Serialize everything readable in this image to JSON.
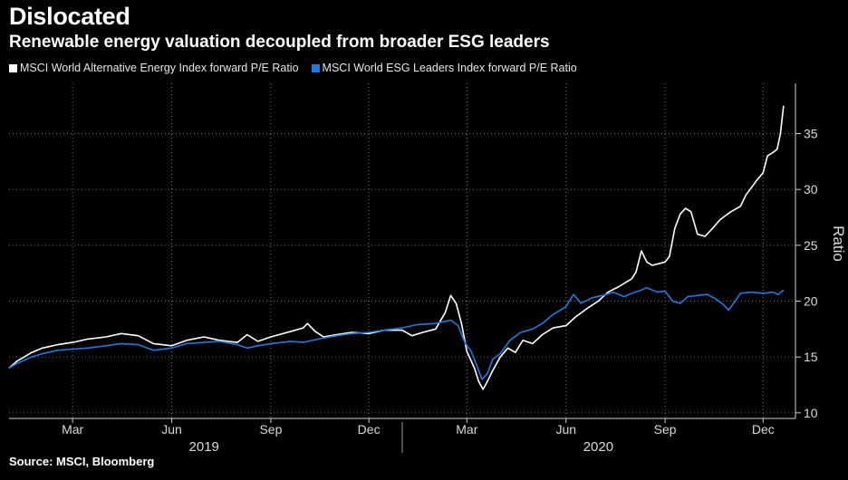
{
  "header": {
    "title": "Dislocated",
    "subtitle": "Renewable energy valuation decoupled from broader ESG leaders"
  },
  "footer": {
    "source": "Source: MSCI, Bloomberg"
  },
  "colors": {
    "background": "#000000",
    "series_white": "#ffffff",
    "series_blue": "#1f7ae0",
    "grid": "#7a7a7a"
  },
  "chart_data": {
    "type": "line",
    "title": "Dislocated",
    "subtitle": "Renewable energy valuation decoupled from broader ESG leaders",
    "ylabel": "Ratio",
    "xlabel": "",
    "x_domain": [
      "2019-01-01",
      "2020-12-31"
    ],
    "ylim": [
      9.5,
      39.5
    ],
    "yticks": [
      10,
      15,
      20,
      25,
      30,
      35
    ],
    "y_axis_side": "right",
    "grid": "dotted",
    "legend_position": "top-left",
    "x_month_ticks": [
      {
        "label": "Mar",
        "date": "2019-03-01"
      },
      {
        "label": "Jun",
        "date": "2019-06-01"
      },
      {
        "label": "Sep",
        "date": "2019-09-01"
      },
      {
        "label": "Dec",
        "date": "2019-12-01"
      },
      {
        "label": "Mar",
        "date": "2020-03-01"
      },
      {
        "label": "Jun",
        "date": "2020-06-01"
      },
      {
        "label": "Sep",
        "date": "2020-09-01"
      },
      {
        "label": "Dec",
        "date": "2020-12-01"
      }
    ],
    "x_year_labels": [
      {
        "label": "2019",
        "date": "2019-07-01"
      },
      {
        "label": "2020",
        "date": "2020-07-01"
      }
    ],
    "x_year_divider": "2020-01-01",
    "series": [
      {
        "name": "MSCI World Alternative Energy Index forward P/E Ratio",
        "color": "#ffffff",
        "points": [
          [
            "2019-01-01",
            14.0
          ],
          [
            "2019-01-08",
            14.6
          ],
          [
            "2019-01-15",
            15.0
          ],
          [
            "2019-01-22",
            15.4
          ],
          [
            "2019-02-01",
            15.8
          ],
          [
            "2019-02-15",
            16.1
          ],
          [
            "2019-03-01",
            16.3
          ],
          [
            "2019-03-15",
            16.6
          ],
          [
            "2019-04-01",
            16.8
          ],
          [
            "2019-04-15",
            17.1
          ],
          [
            "2019-05-01",
            16.9
          ],
          [
            "2019-05-15",
            16.2
          ],
          [
            "2019-06-01",
            16.0
          ],
          [
            "2019-06-15",
            16.5
          ],
          [
            "2019-07-01",
            16.8
          ],
          [
            "2019-07-15",
            16.5
          ],
          [
            "2019-08-01",
            16.3
          ],
          [
            "2019-08-10",
            17.0
          ],
          [
            "2019-08-20",
            16.4
          ],
          [
            "2019-09-01",
            16.8
          ],
          [
            "2019-09-20",
            17.3
          ],
          [
            "2019-10-01",
            17.6
          ],
          [
            "2019-10-05",
            18.0
          ],
          [
            "2019-10-12",
            17.3
          ],
          [
            "2019-10-20",
            16.8
          ],
          [
            "2019-11-01",
            17.0
          ],
          [
            "2019-11-15",
            17.2
          ],
          [
            "2019-12-01",
            17.1
          ],
          [
            "2019-12-15",
            17.4
          ],
          [
            "2020-01-01",
            17.4
          ],
          [
            "2020-01-10",
            16.9
          ],
          [
            "2020-01-20",
            17.2
          ],
          [
            "2020-02-01",
            17.5
          ],
          [
            "2020-02-10",
            19.0
          ],
          [
            "2020-02-15",
            20.5
          ],
          [
            "2020-02-20",
            19.8
          ],
          [
            "2020-02-25",
            18.0
          ],
          [
            "2020-03-01",
            15.5
          ],
          [
            "2020-03-08",
            14.0
          ],
          [
            "2020-03-12",
            12.8
          ],
          [
            "2020-03-16",
            12.1
          ],
          [
            "2020-03-20",
            12.8
          ],
          [
            "2020-03-25",
            13.8
          ],
          [
            "2020-04-01",
            15.0
          ],
          [
            "2020-04-08",
            15.8
          ],
          [
            "2020-04-15",
            15.4
          ],
          [
            "2020-04-22",
            16.5
          ],
          [
            "2020-05-01",
            16.2
          ],
          [
            "2020-05-10",
            17.0
          ],
          [
            "2020-05-20",
            17.6
          ],
          [
            "2020-06-01",
            17.8
          ],
          [
            "2020-06-10",
            18.6
          ],
          [
            "2020-06-20",
            19.3
          ],
          [
            "2020-07-01",
            20.0
          ],
          [
            "2020-07-10",
            20.8
          ],
          [
            "2020-07-20",
            21.3
          ],
          [
            "2020-08-01",
            22.0
          ],
          [
            "2020-08-05",
            22.6
          ],
          [
            "2020-08-10",
            24.5
          ],
          [
            "2020-08-15",
            23.5
          ],
          [
            "2020-08-20",
            23.2
          ],
          [
            "2020-09-01",
            23.5
          ],
          [
            "2020-09-05",
            24.0
          ],
          [
            "2020-09-10",
            26.5
          ],
          [
            "2020-09-15",
            27.8
          ],
          [
            "2020-09-20",
            28.3
          ],
          [
            "2020-09-25",
            28.0
          ],
          [
            "2020-10-01",
            26.0
          ],
          [
            "2020-10-08",
            25.8
          ],
          [
            "2020-10-15",
            26.5
          ],
          [
            "2020-10-22",
            27.3
          ],
          [
            "2020-11-01",
            28.0
          ],
          [
            "2020-11-10",
            28.5
          ],
          [
            "2020-11-15",
            29.5
          ],
          [
            "2020-11-25",
            30.8
          ],
          [
            "2020-12-01",
            31.5
          ],
          [
            "2020-12-05",
            33.0
          ],
          [
            "2020-12-10",
            33.3
          ],
          [
            "2020-12-14",
            33.6
          ],
          [
            "2020-12-17",
            35.0
          ],
          [
            "2020-12-20",
            37.5
          ]
        ]
      },
      {
        "name": "MSCI World ESG Leaders Index forward P/E Ratio",
        "color": "#1f7ae0",
        "points": [
          [
            "2019-01-01",
            14.0
          ],
          [
            "2019-01-08",
            14.4
          ],
          [
            "2019-01-15",
            14.7
          ],
          [
            "2019-01-22",
            15.0
          ],
          [
            "2019-02-01",
            15.3
          ],
          [
            "2019-02-15",
            15.6
          ],
          [
            "2019-03-01",
            15.7
          ],
          [
            "2019-03-15",
            15.8
          ],
          [
            "2019-04-01",
            16.0
          ],
          [
            "2019-04-15",
            16.2
          ],
          [
            "2019-05-01",
            16.1
          ],
          [
            "2019-05-15",
            15.6
          ],
          [
            "2019-06-01",
            15.8
          ],
          [
            "2019-06-15",
            16.2
          ],
          [
            "2019-07-01",
            16.3
          ],
          [
            "2019-07-15",
            16.4
          ],
          [
            "2019-08-01",
            16.1
          ],
          [
            "2019-08-10",
            15.8
          ],
          [
            "2019-08-20",
            16.0
          ],
          [
            "2019-09-01",
            16.2
          ],
          [
            "2019-09-20",
            16.4
          ],
          [
            "2019-10-01",
            16.3
          ],
          [
            "2019-10-15",
            16.6
          ],
          [
            "2019-11-01",
            16.9
          ],
          [
            "2019-11-15",
            17.1
          ],
          [
            "2019-12-01",
            17.2
          ],
          [
            "2019-12-15",
            17.4
          ],
          [
            "2020-01-01",
            17.6
          ],
          [
            "2020-01-15",
            17.9
          ],
          [
            "2020-02-01",
            18.0
          ],
          [
            "2020-02-15",
            18.3
          ],
          [
            "2020-02-22",
            17.8
          ],
          [
            "2020-02-28",
            16.3
          ],
          [
            "2020-03-05",
            15.5
          ],
          [
            "2020-03-10",
            14.3
          ],
          [
            "2020-03-15",
            13.0
          ],
          [
            "2020-03-20",
            13.5
          ],
          [
            "2020-03-25",
            14.8
          ],
          [
            "2020-04-01",
            15.3
          ],
          [
            "2020-04-10",
            16.5
          ],
          [
            "2020-04-20",
            17.2
          ],
          [
            "2020-05-01",
            17.5
          ],
          [
            "2020-05-10",
            18.0
          ],
          [
            "2020-05-20",
            18.8
          ],
          [
            "2020-06-01",
            19.5
          ],
          [
            "2020-06-08",
            20.6
          ],
          [
            "2020-06-15",
            19.8
          ],
          [
            "2020-06-25",
            20.3
          ],
          [
            "2020-07-05",
            20.5
          ],
          [
            "2020-07-15",
            20.8
          ],
          [
            "2020-07-25",
            20.4
          ],
          [
            "2020-08-01",
            20.7
          ],
          [
            "2020-08-10",
            21.0
          ],
          [
            "2020-08-15",
            21.2
          ],
          [
            "2020-08-25",
            20.8
          ],
          [
            "2020-09-01",
            20.9
          ],
          [
            "2020-09-08",
            20.0
          ],
          [
            "2020-09-15",
            19.8
          ],
          [
            "2020-09-22",
            20.4
          ],
          [
            "2020-10-01",
            20.5
          ],
          [
            "2020-10-10",
            20.6
          ],
          [
            "2020-10-18",
            20.2
          ],
          [
            "2020-10-25",
            19.7
          ],
          [
            "2020-10-30",
            19.2
          ],
          [
            "2020-11-05",
            20.0
          ],
          [
            "2020-11-10",
            20.7
          ],
          [
            "2020-11-20",
            20.8
          ],
          [
            "2020-12-01",
            20.7
          ],
          [
            "2020-12-10",
            20.8
          ],
          [
            "2020-12-15",
            20.6
          ],
          [
            "2020-12-20",
            21.0
          ]
        ]
      }
    ]
  }
}
